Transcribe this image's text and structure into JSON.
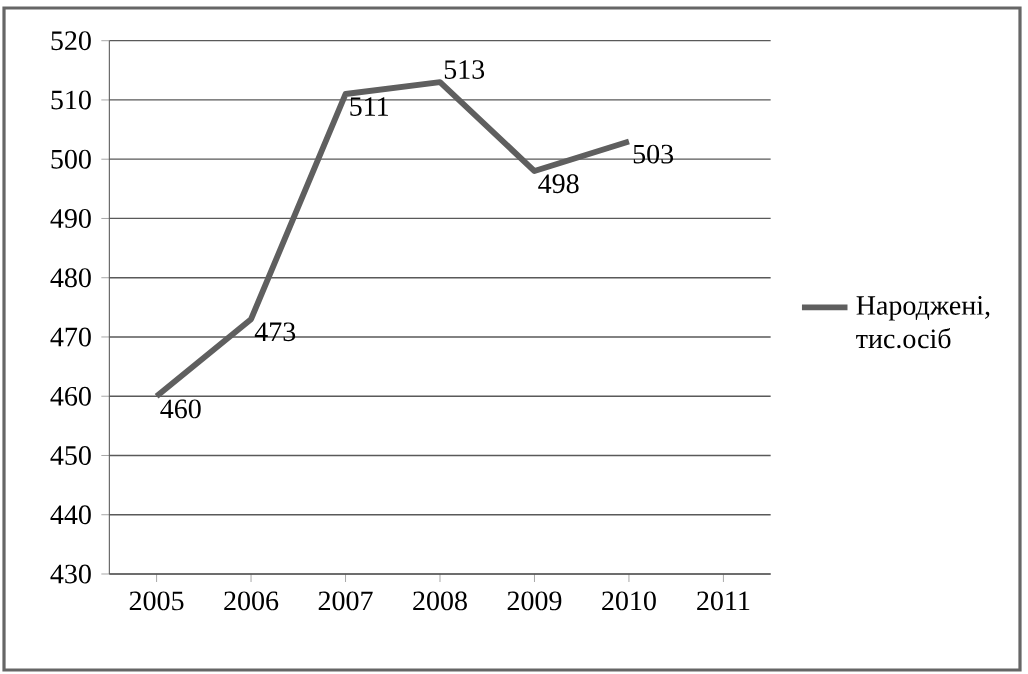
{
  "chart_data": {
    "type": "line",
    "categories": [
      "2005",
      "2006",
      "2007",
      "2008",
      "2009",
      "2010",
      "2011"
    ],
    "series": [
      {
        "name": "Народжені, тис.осіб",
        "color": "#5f5f5f",
        "values": [
          460,
          473,
          511,
          513,
          498,
          503,
          null
        ]
      }
    ],
    "ylim": [
      430,
      520
    ],
    "yticks": [
      430,
      440,
      450,
      460,
      470,
      480,
      490,
      500,
      510,
      520
    ],
    "grid": "y",
    "legend": "right",
    "marker": "none",
    "line_style": "solid",
    "data_labels": true
  }
}
